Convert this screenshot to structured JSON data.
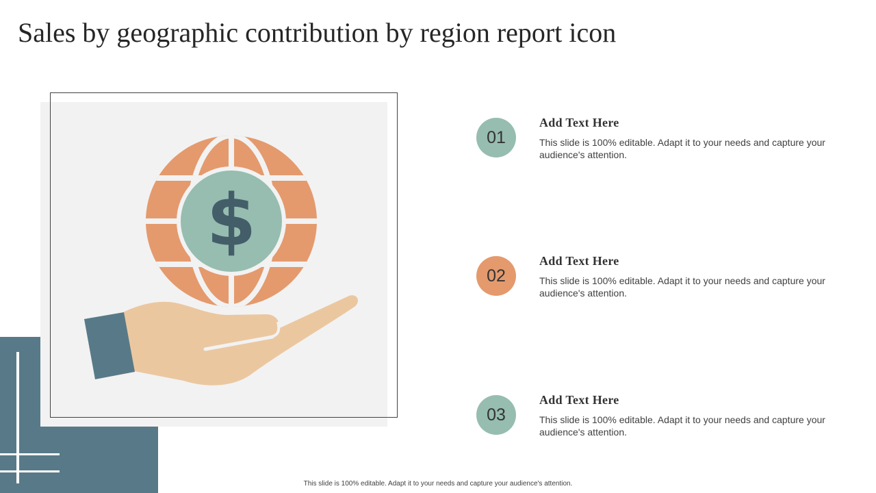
{
  "slide": {
    "title": "Sales by geographic contribution by region report icon",
    "footer": "This slide is 100% editable. Adapt it to your needs and capture your audience's attention."
  },
  "icon": {
    "name": "hand-holding-globe-dollar-icon",
    "dollar_sign": "$"
  },
  "items": [
    {
      "number": "01",
      "heading": "Add Text Here",
      "body": "This slide is 100% editable. Adapt it to your needs and capture your audience's attention.",
      "color": "#96bdb0"
    },
    {
      "number": "02",
      "heading": "Add Text Here",
      "body": "This slide is 100% editable. Adapt it to your needs and capture your audience's attention.",
      "color": "#e49a6d"
    },
    {
      "number": "03",
      "heading": "Add Text Here",
      "body": "This slide is 100% editable. Adapt it to your needs and capture your audience's attention.",
      "color": "#96bdb0"
    }
  ],
  "colors": {
    "slate_blue": "#587a88",
    "globe_orange": "#e49a6d",
    "coin_green": "#96bdb0",
    "dollar_dark": "#435e68",
    "hand_skin": "#ebc7a0",
    "panel_gray": "#f2f2f2"
  }
}
